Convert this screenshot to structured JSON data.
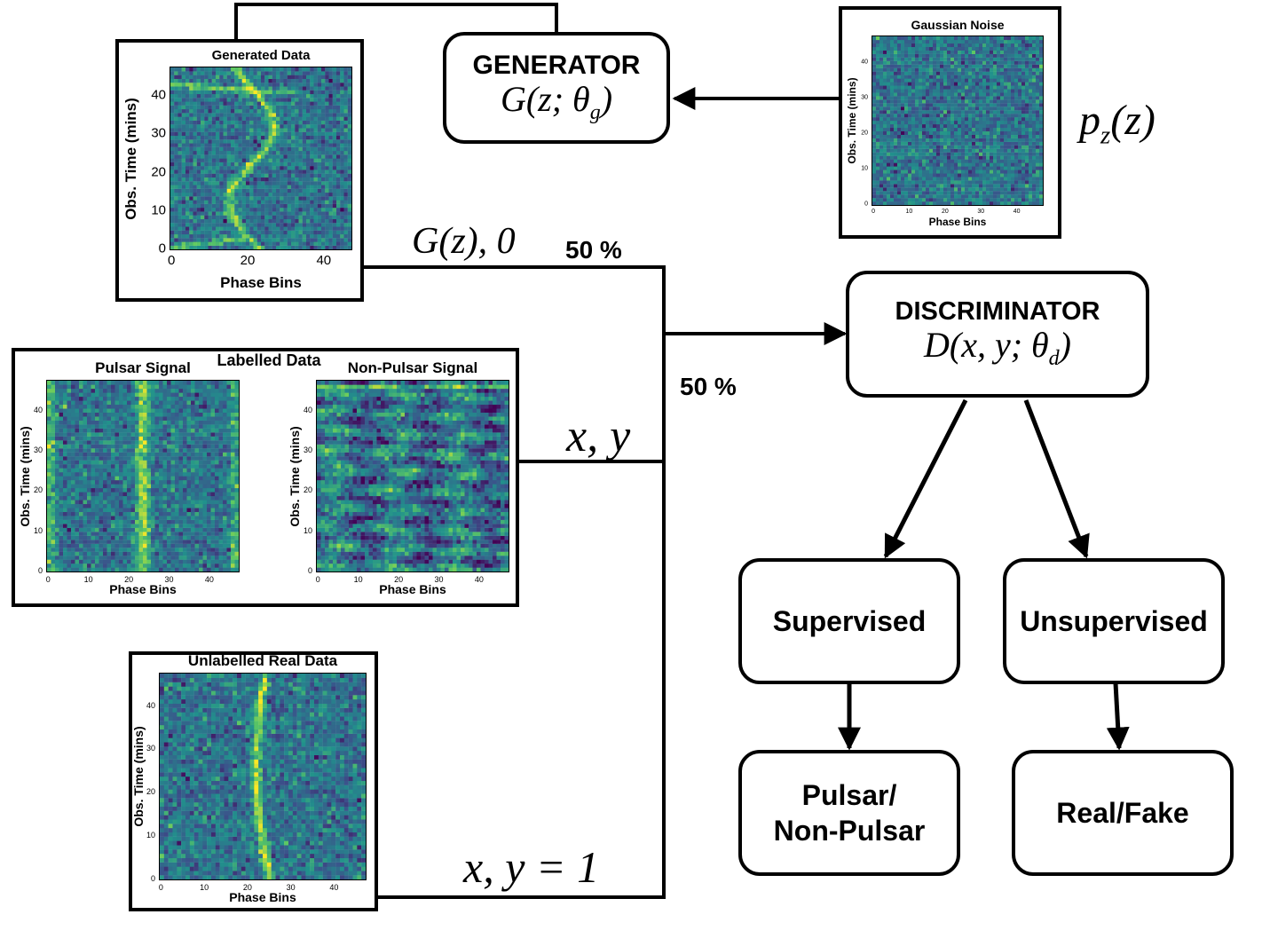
{
  "generator": {
    "title": "GENERATOR",
    "formula": "G(z; θg)"
  },
  "discriminator": {
    "title": "DISCRIMINATOR",
    "formula": "D(x, y; θd)"
  },
  "noise_dist": "pz(z)",
  "edges": {
    "generated_label": "G(z), 0",
    "labelled_label": "x, y",
    "unlabelled_label": "x, y = 1",
    "pct_top": "50 %",
    "pct_bottom": "50 %"
  },
  "outcomes": {
    "supervised": "Supervised",
    "unsupervised": "Unsupervised",
    "pulsar_line1": "Pulsar/",
    "pulsar_line2": "Non-Pulsar",
    "realfake": "Real/Fake"
  },
  "labelled_panel_title": "Labelled Data",
  "plots": [
    {
      "id": "generated",
      "title": "Generated Data",
      "xlabel": "Phase Bins",
      "ylabel": "Obs. Time (mins)",
      "xticks": [
        "0",
        "20",
        "40"
      ],
      "yticks": [
        "0",
        "10",
        "20",
        "30",
        "40"
      ],
      "signal": "s-curve"
    },
    {
      "id": "noise",
      "title": "Gaussian Noise",
      "xlabel": "Phase Bins",
      "ylabel": "Obs. Time (mins)",
      "xticks": [
        "0",
        "10",
        "20",
        "30",
        "40"
      ],
      "yticks": [
        "0",
        "10",
        "20",
        "30",
        "40"
      ],
      "signal": "noise"
    },
    {
      "id": "pulsar",
      "title": "Pulsar Signal",
      "xlabel": "Phase Bins",
      "ylabel": "Obs. Time (mins)",
      "xticks": [
        "0",
        "10",
        "20",
        "30",
        "40"
      ],
      "yticks": [
        "0",
        "10",
        "20",
        "30",
        "40"
      ],
      "signal": "vertical"
    },
    {
      "id": "nonpulsar",
      "title": "Non-Pulsar Signal",
      "xlabel": "Phase Bins",
      "ylabel": "Obs. Time (mins)",
      "xticks": [
        "0",
        "10",
        "20",
        "30",
        "40"
      ],
      "yticks": [
        "0",
        "10",
        "20",
        "30",
        "40"
      ],
      "signal": "rfi"
    },
    {
      "id": "unlabelled",
      "title": "Unlabelled Real Data",
      "xlabel": "Phase Bins",
      "ylabel": "Obs. Time (mins)",
      "xticks": [
        "0",
        "10",
        "20",
        "30",
        "40"
      ],
      "yticks": [
        "0",
        "10",
        "20",
        "30",
        "40"
      ],
      "signal": "curved"
    }
  ],
  "colors": {
    "viridis_dark": "#440154",
    "viridis_mid": "#21918c",
    "viridis_bright": "#fde725",
    "line": "#000000"
  }
}
